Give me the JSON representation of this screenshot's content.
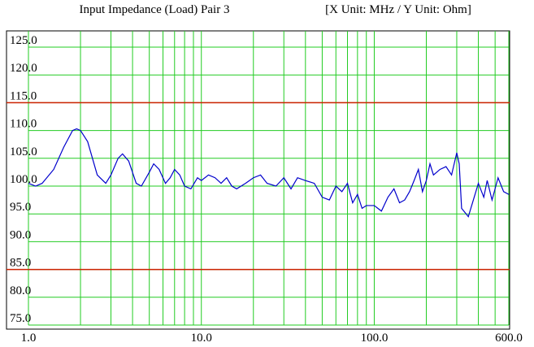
{
  "chart_data": {
    "type": "line",
    "title": "Input Impedance (Load) Pair 3",
    "subtitle": "[X Unit: MHz / Y Unit: Ohm]",
    "log_x": true,
    "xlim": [
      1,
      600
    ],
    "xticks": [
      {
        "value": 1,
        "label": "1.0"
      },
      {
        "value": 10,
        "label": "10.0"
      },
      {
        "value": 100,
        "label": "100.0"
      },
      {
        "value": 600,
        "label": "600.0"
      }
    ],
    "xminor": [
      2,
      3,
      4,
      5,
      6,
      7,
      8,
      9,
      20,
      30,
      40,
      50,
      60,
      70,
      80,
      90,
      200,
      300,
      400,
      500
    ],
    "ylim": [
      75,
      125
    ],
    "yticks": [
      {
        "value": 75,
        "label": "75.0"
      },
      {
        "value": 80,
        "label": "80.0"
      },
      {
        "value": 85,
        "label": "85.0"
      },
      {
        "value": 90,
        "label": "90.0"
      },
      {
        "value": 95,
        "label": "95.0"
      },
      {
        "value": 100,
        "label": "100.0"
      },
      {
        "value": 105,
        "label": "105.0"
      },
      {
        "value": 110,
        "label": "110.0"
      },
      {
        "value": 115,
        "label": "115.0"
      },
      {
        "value": 120,
        "label": "120.0"
      },
      {
        "value": 125,
        "label": "125.0"
      }
    ],
    "grid": true,
    "grid_color": "#22cc22",
    "limit_lines": [
      {
        "value": 115,
        "color": "#cc2200"
      },
      {
        "value": 85,
        "color": "#cc2200"
      }
    ],
    "color": "#0000cc",
    "x": [
      1.0,
      1.1,
      1.2,
      1.4,
      1.6,
      1.8,
      1.9,
      2.0,
      2.2,
      2.5,
      2.8,
      3.0,
      3.3,
      3.5,
      3.8,
      4.2,
      4.5,
      5.0,
      5.3,
      5.7,
      6.2,
      6.6,
      7.0,
      7.5,
      8.0,
      8.7,
      9.5,
      10,
      11,
      12,
      13,
      14,
      15,
      16,
      18,
      20,
      22,
      24,
      27,
      30,
      33,
      36,
      40,
      45,
      50,
      55,
      60,
      65,
      70,
      75,
      80,
      85,
      90,
      100,
      110,
      120,
      130,
      140,
      150,
      160,
      170,
      180,
      190,
      200,
      210,
      220,
      240,
      260,
      280,
      300,
      310,
      320,
      340,
      350,
      370,
      400,
      430,
      450,
      480,
      520,
      560,
      600
    ],
    "values": [
      100.5,
      100,
      100.5,
      103,
      107,
      110,
      110.3,
      110,
      108,
      102,
      100.5,
      102,
      105,
      105.8,
      104.5,
      100.5,
      100,
      102.5,
      104,
      103,
      100.5,
      101.5,
      103,
      102,
      100,
      99.5,
      101.5,
      101,
      102,
      101.5,
      100.5,
      101.5,
      100,
      99.5,
      100.5,
      101.5,
      102,
      100.5,
      100,
      101.5,
      99.5,
      101.5,
      101,
      100.5,
      98,
      97.5,
      100,
      99,
      100.5,
      97,
      98.5,
      96,
      96.5,
      96.5,
      95.5,
      98,
      99.5,
      97,
      97.5,
      99,
      101,
      103,
      99,
      101,
      104,
      102,
      103,
      103.5,
      102,
      106,
      104,
      96,
      95,
      94.5,
      97,
      100.5,
      98,
      101,
      97.5,
      101.5,
      99,
      98.5
    ]
  }
}
